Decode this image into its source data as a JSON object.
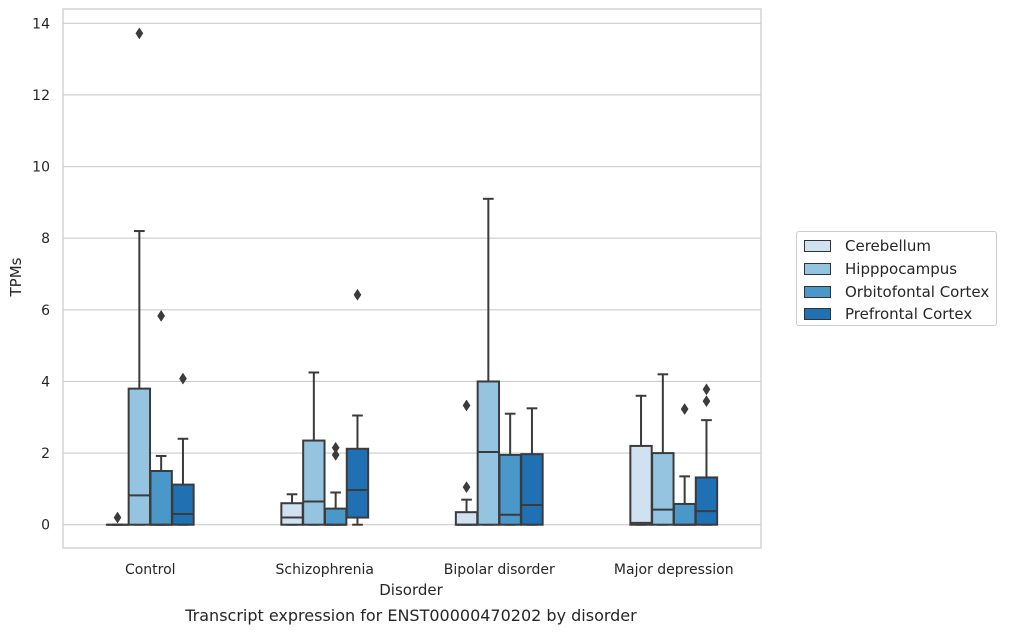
{
  "chart_data": {
    "type": "box",
    "title": "Transcript expression for ENST00000470202 by disorder",
    "xlabel": "Disorder",
    "ylabel": "TPMs",
    "ylim": [
      -0.65,
      14.4
    ],
    "yticks": [
      0,
      2,
      4,
      6,
      8,
      10,
      12,
      14
    ],
    "grid": true,
    "legend_placement": "right",
    "categories": [
      "Control",
      "Schizophrenia",
      "Bipolar disorder",
      "Major depression"
    ],
    "series": [
      {
        "name": "Cerebellum",
        "color": "#d0e1f2",
        "boxes": [
          {
            "whislo": 0,
            "q1": 0,
            "med": 0,
            "q3": 0,
            "whishi": 0,
            "fliers": [
              0.2
            ]
          },
          {
            "whislo": 0,
            "q1": 0,
            "med": 0.2,
            "q3": 0.6,
            "whishi": 0.85,
            "fliers": []
          },
          {
            "whislo": 0,
            "q1": 0,
            "med": 0,
            "q3": 0.35,
            "whishi": 0.7,
            "fliers": [
              1.05,
              3.33
            ]
          },
          {
            "whislo": 0,
            "q1": 0,
            "med": 0.05,
            "q3": 2.2,
            "whishi": 3.6,
            "fliers": []
          }
        ]
      },
      {
        "name": "Hipppocampus",
        "color": "#94c4df",
        "boxes": [
          {
            "whislo": 0,
            "q1": 0,
            "med": 0.82,
            "q3": 3.8,
            "whishi": 8.2,
            "fliers": [
              13.72
            ]
          },
          {
            "whislo": 0,
            "q1": 0,
            "med": 0.65,
            "q3": 2.35,
            "whishi": 4.25,
            "fliers": []
          },
          {
            "whislo": 0,
            "q1": 0,
            "med": 2.03,
            "q3": 4.0,
            "whishi": 9.1,
            "fliers": []
          },
          {
            "whislo": 0,
            "q1": 0,
            "med": 0.42,
            "q3": 2.0,
            "whishi": 4.2,
            "fliers": []
          }
        ]
      },
      {
        "name": "Orbitofontal Cortex",
        "color": "#4a98c9",
        "boxes": [
          {
            "whislo": 0,
            "q1": 0,
            "med": 0,
            "q3": 1.5,
            "whishi": 1.92,
            "fliers": [
              5.83
            ]
          },
          {
            "whislo": 0,
            "q1": 0,
            "med": 0,
            "q3": 0.45,
            "whishi": 0.9,
            "fliers": [
              1.95,
              2.15
            ]
          },
          {
            "whislo": 0,
            "q1": 0,
            "med": 0.28,
            "q3": 1.95,
            "whishi": 3.1,
            "fliers": []
          },
          {
            "whislo": 0,
            "q1": 0,
            "med": 0,
            "q3": 0.58,
            "whishi": 1.35,
            "fliers": [
              3.23
            ]
          }
        ]
      },
      {
        "name": "Prefrontal Cortex",
        "color": "#2070b4",
        "boxes": [
          {
            "whislo": 0,
            "q1": 0,
            "med": 0.3,
            "q3": 1.12,
            "whishi": 2.4,
            "fliers": [
              4.08
            ]
          },
          {
            "whislo": 0,
            "q1": 0.2,
            "med": 0.97,
            "q3": 2.12,
            "whishi": 3.05,
            "fliers": [
              6.42
            ]
          },
          {
            "whislo": 0,
            "q1": 0,
            "med": 0.55,
            "q3": 1.97,
            "whishi": 3.25,
            "fliers": []
          },
          {
            "whislo": 0,
            "q1": 0,
            "med": 0.38,
            "q3": 1.32,
            "whishi": 2.92,
            "fliers": [
              3.45,
              3.78
            ]
          }
        ]
      }
    ]
  }
}
